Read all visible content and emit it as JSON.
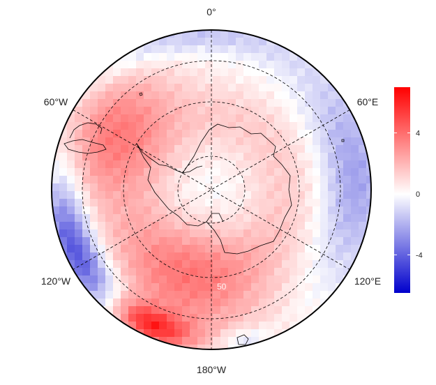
{
  "map": {
    "projection": "south-polar-stereographic",
    "longitude_labels": {
      "top": "0°",
      "upper_left": "60°W",
      "upper_right": "60°E",
      "lower_left": "120°W",
      "lower_right": "120°E",
      "bottom": "180°W"
    },
    "inner_faint_label": "50",
    "graticule_style": "dashed",
    "coastline": "Antarctica and adjacent coasts"
  },
  "colorbar": {
    "ticks": [
      "4",
      "0",
      "-4"
    ],
    "range": [
      -6.5,
      7
    ],
    "colors": {
      "low": "#0000cc",
      "mid": "#ffffff",
      "high": "#ff0000"
    }
  },
  "field_pattern": {
    "positive_regions": [
      "Amundsen-Bellingshausen Sea (around 60°W-100°W)",
      "Ross Sea (around 180°)",
      "interior band around continent"
    ],
    "negative_regions": [
      "outer ring near 120°W-150°W",
      "Indian Ocean sector near 60°E-120°E",
      "outer ring near 0°"
    ]
  }
}
